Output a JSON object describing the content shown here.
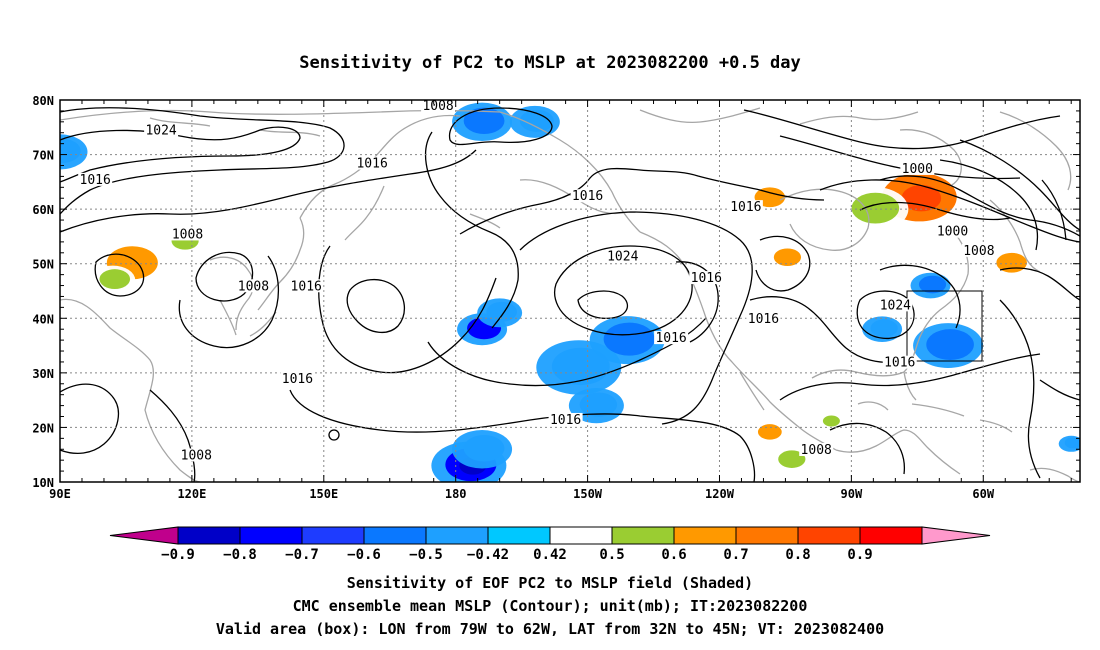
{
  "title": "Sensitivity of PC2 to MSLP at 2023082200 +0.5 day",
  "axes": {
    "lat_labels": [
      "80N",
      "70N",
      "60N",
      "50N",
      "40N",
      "30N",
      "20N",
      "10N"
    ],
    "lon_labels": [
      "90E",
      "120E",
      "150E",
      "180",
      "150W",
      "120W",
      "90W",
      "60W"
    ],
    "lon_range_deg_east": [
      90,
      322
    ],
    "lat_range_deg": [
      10,
      80
    ],
    "grid": "dotted"
  },
  "colorbar": {
    "labels": [
      "-0.9",
      "-0.8",
      "-0.7",
      "-0.6",
      "-0.5",
      "-0.42",
      "0.42",
      "0.5",
      "0.6",
      "0.7",
      "0.8",
      "0.9"
    ],
    "colors": [
      "#c0008c",
      "#0000c8",
      "#0000ff",
      "#1e3cff",
      "#0a78ff",
      "#1ea0ff",
      "#00c8ff",
      "#ffffff",
      "#9acd32",
      "#ff9900",
      "#ff7700",
      "#ff4400",
      "#ff0000",
      "#ff99cc"
    ]
  },
  "caption": {
    "line1": "Sensitivity of EOF PC2 to MSLP field (Shaded)",
    "line2": "CMC ensemble mean MSLP (Contour); unit(mb); IT:2023082200",
    "line3": "Valid area (box): LON from 79W to 62W, LAT from 32N to 45N; VT: 2023082400"
  },
  "valid_box": {
    "lon_west": -79,
    "lon_east": -62,
    "lat_south": 32,
    "lat_north": 45
  },
  "contour_labels": [
    {
      "text": "1024",
      "lon": 113,
      "lat": 74
    },
    {
      "text": "1016",
      "lon": 98,
      "lat": 65
    },
    {
      "text": "1008",
      "lon": 176,
      "lat": 78.5
    },
    {
      "text": "1016",
      "lon": 161,
      "lat": 68
    },
    {
      "text": "1016",
      "lon": 210,
      "lat": 62
    },
    {
      "text": "1016",
      "lon": 246,
      "lat": 60
    },
    {
      "text": "1000",
      "lon": 285,
      "lat": 67
    },
    {
      "text": "1000",
      "lon": 293,
      "lat": 55.5
    },
    {
      "text": "1008",
      "lon": 299,
      "lat": 52
    },
    {
      "text": "1008",
      "lon": 119,
      "lat": 55
    },
    {
      "text": "1008",
      "lon": 134,
      "lat": 45.5
    },
    {
      "text": "1016",
      "lon": 146,
      "lat": 45.5
    },
    {
      "text": "1024",
      "lon": 218,
      "lat": 51
    },
    {
      "text": "1016",
      "lon": 237,
      "lat": 47
    },
    {
      "text": "1016",
      "lon": 250,
      "lat": 39.5
    },
    {
      "text": "1016",
      "lon": 229,
      "lat": 36
    },
    {
      "text": "1024",
      "lon": 280,
      "lat": 42
    },
    {
      "text": "1016",
      "lon": 281,
      "lat": 31.5
    },
    {
      "text": "1016",
      "lon": 144,
      "lat": 28.5
    },
    {
      "text": "1016",
      "lon": 205,
      "lat": 21
    },
    {
      "text": "1008",
      "lon": 121,
      "lat": 14.5
    },
    {
      "text": "1008",
      "lon": 262,
      "lat": 15.5
    }
  ],
  "shaded_regions": [
    {
      "lon": 90,
      "lat": 70.5,
      "sensitivity": -0.5,
      "label": "negative"
    },
    {
      "lon": 106,
      "lat": 50,
      "sensitivity": 0.65,
      "label": "positive"
    },
    {
      "lon": 102,
      "lat": 47,
      "sensitivity": 0.5,
      "label": "positive"
    },
    {
      "lon": 118,
      "lat": 54,
      "sensitivity": 0.5,
      "label": "positive"
    },
    {
      "lon": 186,
      "lat": 76,
      "sensitivity": -0.55,
      "label": "negative"
    },
    {
      "lon": 198,
      "lat": 76,
      "sensitivity": -0.5,
      "label": "negative"
    },
    {
      "lon": 186,
      "lat": 38,
      "sensitivity": -0.75,
      "label": "negative"
    },
    {
      "lon": 190,
      "lat": 41,
      "sensitivity": -0.5,
      "label": "negative"
    },
    {
      "lon": 208,
      "lat": 31,
      "sensitivity": -0.5,
      "label": "negative"
    },
    {
      "lon": 219,
      "lat": 36,
      "sensitivity": -0.6,
      "label": "negative"
    },
    {
      "lon": 212,
      "lat": 24,
      "sensitivity": -0.5,
      "label": "negative"
    },
    {
      "lon": 183,
      "lat": 13,
      "sensitivity": -0.8,
      "label": "negative"
    },
    {
      "lon": 186,
      "lat": 16,
      "sensitivity": -0.5,
      "label": "negative"
    },
    {
      "lon": 251,
      "lat": 62,
      "sensitivity": 0.6,
      "label": "positive"
    },
    {
      "lon": 255,
      "lat": 51,
      "sensitivity": 0.6,
      "label": "positive"
    },
    {
      "lon": 285,
      "lat": 62,
      "sensitivity": 0.75,
      "label": "positive"
    },
    {
      "lon": 275,
      "lat": 60,
      "sensitivity": 0.55,
      "label": "positive"
    },
    {
      "lon": 306,
      "lat": 50,
      "sensitivity": 0.6,
      "label": "positive"
    },
    {
      "lon": 288,
      "lat": 46,
      "sensitivity": -0.6,
      "label": "negative"
    },
    {
      "lon": 292,
      "lat": 35,
      "sensitivity": -0.55,
      "label": "negative"
    },
    {
      "lon": 277,
      "lat": 38,
      "sensitivity": -0.5,
      "label": "negative"
    },
    {
      "lon": 251,
      "lat": 19,
      "sensitivity": 0.6,
      "label": "positive"
    },
    {
      "lon": 256,
      "lat": 14,
      "sensitivity": 0.5,
      "label": "positive"
    },
    {
      "lon": 265,
      "lat": 21,
      "sensitivity": 0.5,
      "label": "positive"
    },
    {
      "lon": 320,
      "lat": 17,
      "sensitivity": -0.5,
      "label": "negative"
    }
  ]
}
